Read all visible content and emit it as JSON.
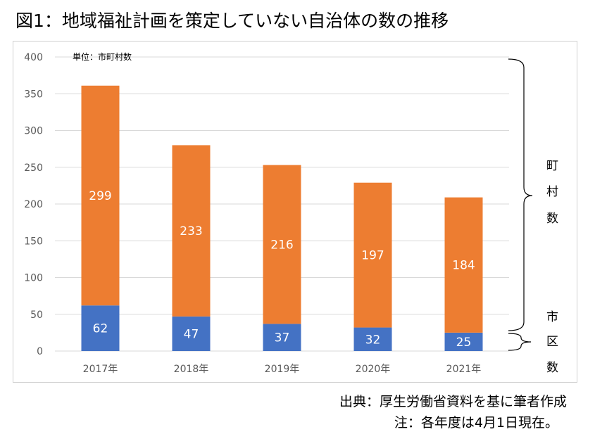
{
  "title": "図1：地域福祉計画を策定していない自治体の数の推移",
  "unit_label": "単位：市町村数",
  "source_note": "出典：厚生労働省資料を基に筆者作成",
  "date_note": "注：各年度は4月1日現在。",
  "brace_labels": {
    "town_village": [
      "町",
      "村",
      "数"
    ],
    "city_ward": [
      "市",
      "区",
      "数"
    ]
  },
  "colors": {
    "city_ward": "#4472c4",
    "town_village": "#ed7d31"
  },
  "chart_data": {
    "type": "bar",
    "stacked": true,
    "categories": [
      "2017年",
      "2018年",
      "2019年",
      "2020年",
      "2021年"
    ],
    "series": [
      {
        "values": [
          62,
          47,
          37,
          32,
          25
        ]
      },
      {
        "values": [
          299,
          233,
          216,
          197,
          184
        ]
      }
    ],
    "ylim": [
      0,
      400
    ],
    "yticks": [
      0,
      50,
      100,
      150,
      200,
      250,
      300,
      350,
      400
    ],
    "grid": true,
    "legend": "none",
    "data_labels": true
  }
}
